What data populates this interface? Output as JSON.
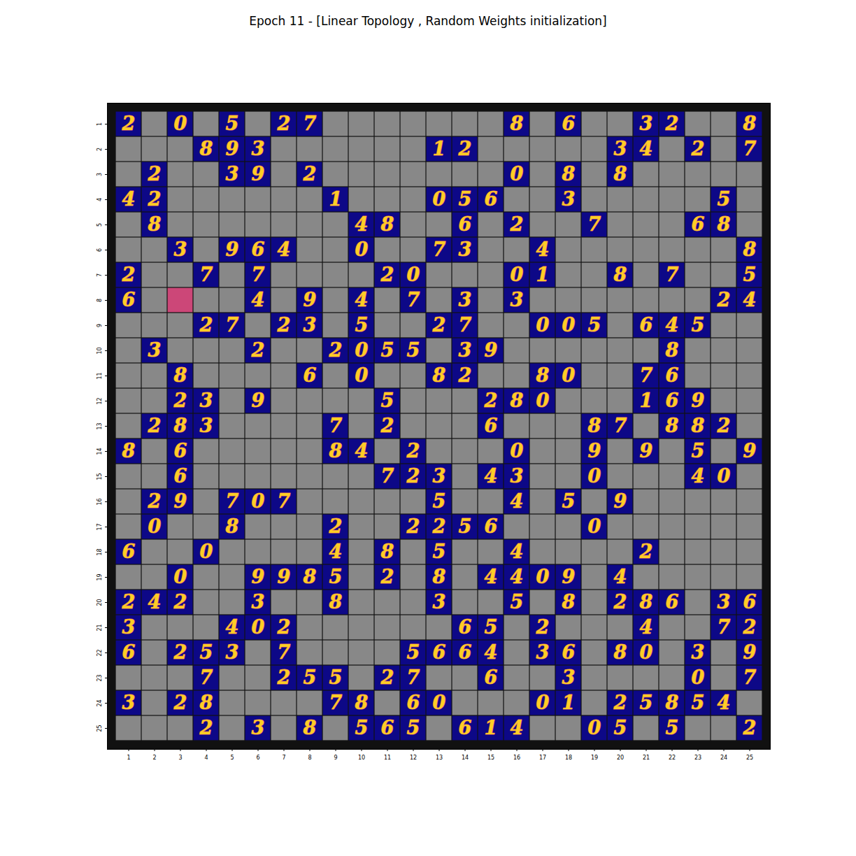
{
  "chart_data": {
    "type": "image_grid",
    "title": "Epoch 11 - [Linear Topology , Random Weights initialization]",
    "xticks": [
      1,
      2,
      3,
      4,
      5,
      6,
      7,
      8,
      9,
      10,
      11,
      12,
      13,
      14,
      15,
      16,
      17,
      18,
      19,
      20,
      21,
      22,
      23,
      24,
      25
    ],
    "yticks": [
      1,
      2,
      3,
      4,
      5,
      6,
      7,
      8,
      9,
      10,
      11,
      12,
      13,
      14,
      15,
      16,
      17,
      18,
      19,
      20,
      21,
      22,
      23,
      24,
      25
    ],
    "highlighted_noise": [
      [
        8,
        3
      ]
    ],
    "cells": [
      [
        2,
        null,
        0,
        null,
        5,
        null,
        2,
        7,
        null,
        null,
        null,
        null,
        null,
        null,
        null,
        8,
        null,
        6,
        null,
        null,
        3,
        2,
        null,
        null,
        8
      ],
      [
        null,
        null,
        null,
        8,
        9,
        3,
        null,
        null,
        null,
        null,
        null,
        null,
        1,
        2,
        null,
        null,
        null,
        null,
        null,
        3,
        4,
        null,
        2,
        null,
        7
      ],
      [
        null,
        2,
        null,
        null,
        3,
        9,
        null,
        2,
        null,
        null,
        null,
        null,
        null,
        null,
        null,
        0,
        null,
        8,
        null,
        8,
        null,
        null,
        null,
        null,
        null
      ],
      [
        4,
        2,
        null,
        null,
        null,
        null,
        null,
        null,
        1,
        null,
        null,
        null,
        0,
        5,
        6,
        null,
        null,
        3,
        null,
        null,
        null,
        null,
        null,
        5,
        null
      ],
      [
        null,
        8,
        null,
        null,
        null,
        null,
        null,
        null,
        null,
        4,
        8,
        null,
        null,
        6,
        null,
        2,
        null,
        null,
        7,
        null,
        null,
        null,
        6,
        8,
        null
      ],
      [
        null,
        null,
        3,
        null,
        9,
        6,
        4,
        null,
        null,
        0,
        null,
        null,
        7,
        3,
        null,
        null,
        4,
        null,
        null,
        null,
        null,
        null,
        null,
        null,
        8
      ],
      [
        2,
        null,
        null,
        7,
        null,
        7,
        null,
        null,
        null,
        null,
        2,
        0,
        null,
        null,
        null,
        0,
        1,
        null,
        null,
        8,
        null,
        7,
        null,
        null,
        5
      ],
      [
        6,
        null,
        null,
        null,
        null,
        4,
        null,
        9,
        null,
        4,
        null,
        7,
        null,
        3,
        null,
        3,
        null,
        null,
        null,
        null,
        null,
        null,
        null,
        2,
        4
      ],
      [
        null,
        null,
        null,
        2,
        7,
        null,
        2,
        3,
        null,
        5,
        null,
        null,
        2,
        7,
        null,
        null,
        0,
        0,
        5,
        null,
        6,
        4,
        5,
        null,
        null
      ],
      [
        null,
        3,
        null,
        null,
        null,
        2,
        null,
        null,
        2,
        0,
        5,
        5,
        null,
        3,
        9,
        null,
        null,
        null,
        null,
        null,
        null,
        8,
        null,
        null,
        null
      ],
      [
        null,
        null,
        8,
        null,
        null,
        null,
        null,
        6,
        null,
        0,
        null,
        null,
        8,
        2,
        null,
        null,
        8,
        0,
        null,
        null,
        7,
        6,
        null,
        null,
        null
      ],
      [
        null,
        null,
        2,
        3,
        null,
        9,
        null,
        null,
        null,
        null,
        5,
        null,
        null,
        null,
        2,
        8,
        0,
        null,
        null,
        null,
        1,
        6,
        9,
        null,
        null
      ],
      [
        null,
        2,
        8,
        3,
        null,
        null,
        null,
        null,
        7,
        null,
        2,
        null,
        null,
        null,
        6,
        null,
        null,
        null,
        8,
        7,
        null,
        8,
        8,
        2,
        null
      ],
      [
        8,
        null,
        6,
        null,
        null,
        null,
        null,
        null,
        8,
        4,
        null,
        2,
        null,
        null,
        null,
        0,
        null,
        null,
        9,
        null,
        9,
        null,
        5,
        null,
        9
      ],
      [
        null,
        null,
        6,
        null,
        null,
        null,
        null,
        null,
        null,
        null,
        7,
        2,
        3,
        null,
        4,
        3,
        null,
        null,
        0,
        null,
        null,
        null,
        4,
        0,
        null
      ],
      [
        null,
        2,
        9,
        null,
        7,
        0,
        7,
        null,
        null,
        null,
        null,
        null,
        5,
        null,
        null,
        4,
        null,
        5,
        null,
        9,
        null,
        null,
        null,
        null,
        null
      ],
      [
        null,
        0,
        null,
        null,
        8,
        null,
        null,
        null,
        2,
        null,
        null,
        2,
        2,
        5,
        6,
        null,
        null,
        null,
        0,
        null,
        null,
        null,
        null,
        null,
        null
      ],
      [
        6,
        null,
        null,
        0,
        null,
        null,
        null,
        null,
        4,
        null,
        8,
        null,
        5,
        null,
        null,
        4,
        null,
        null,
        null,
        null,
        2,
        null,
        null,
        null,
        null
      ],
      [
        null,
        null,
        0,
        null,
        null,
        9,
        9,
        8,
        5,
        null,
        2,
        null,
        8,
        null,
        4,
        4,
        0,
        9,
        null,
        4,
        null,
        null,
        null,
        null,
        null
      ],
      [
        2,
        4,
        2,
        null,
        null,
        3,
        null,
        null,
        8,
        null,
        null,
        null,
        3,
        null,
        null,
        5,
        null,
        8,
        null,
        2,
        8,
        6,
        null,
        3,
        6
      ],
      [
        3,
        null,
        null,
        null,
        4,
        0,
        2,
        null,
        null,
        null,
        null,
        null,
        null,
        6,
        5,
        null,
        2,
        null,
        null,
        null,
        4,
        null,
        null,
        7,
        2
      ],
      [
        6,
        null,
        2,
        5,
        3,
        null,
        7,
        null,
        null,
        null,
        null,
        5,
        6,
        6,
        4,
        null,
        3,
        6,
        null,
        8,
        0,
        null,
        3,
        null,
        9
      ],
      [
        null,
        null,
        null,
        7,
        null,
        null,
        2,
        5,
        5,
        null,
        2,
        7,
        null,
        null,
        6,
        null,
        null,
        3,
        null,
        null,
        null,
        null,
        0,
        null,
        7
      ],
      [
        3,
        null,
        2,
        8,
        null,
        null,
        null,
        null,
        7,
        8,
        null,
        6,
        0,
        null,
        null,
        null,
        0,
        1,
        null,
        2,
        5,
        8,
        5,
        4,
        null
      ],
      [
        null,
        null,
        null,
        2,
        null,
        3,
        null,
        8,
        null,
        5,
        6,
        5,
        null,
        6,
        1,
        4,
        null,
        null,
        0,
        5,
        null,
        5,
        null,
        null,
        2
      ]
    ]
  }
}
